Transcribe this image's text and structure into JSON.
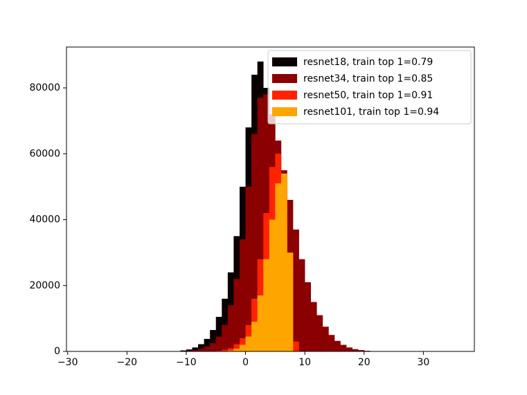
{
  "chart_data": {
    "type": "histogram",
    "bins": [
      -12,
      -11,
      -10,
      -9,
      -8,
      -7,
      -6,
      -5,
      -4,
      -3,
      -2,
      -1,
      0,
      1,
      2,
      3,
      4,
      5,
      6,
      7,
      8,
      9,
      10,
      11,
      12,
      13,
      14,
      15,
      16,
      17,
      18,
      19,
      20,
      21,
      22
    ],
    "series": [
      {
        "name": "resnet18, train top 1=0.79",
        "color": "#0b0000",
        "values": [
          100,
          300,
          600,
          1200,
          2200,
          3800,
          6500,
          10500,
          16000,
          24000,
          35000,
          50000,
          68000,
          84000,
          88000,
          80000,
          62000,
          42000,
          25000,
          13000,
          6000,
          2500,
          1000,
          400,
          100,
          0,
          0,
          0,
          0,
          0,
          0,
          0,
          0,
          0
        ]
      },
      {
        "name": "resnet34, train top 1=0.85",
        "color": "#8b0000",
        "values": [
          50,
          100,
          200,
          400,
          800,
          1500,
          2500,
          4500,
          8000,
          14000,
          22000,
          34000,
          50000,
          66000,
          77000,
          78000,
          72000,
          64000,
          55000,
          46000,
          37000,
          28000,
          21000,
          15000,
          11000,
          7500,
          5000,
          3200,
          2000,
          1200,
          700,
          400,
          200,
          100
        ]
      },
      {
        "name": "resnet50, train top 1=0.91",
        "color": "#ff2200",
        "values": [
          0,
          0,
          0,
          0,
          0,
          0,
          0,
          200,
          500,
          1000,
          2200,
          4000,
          8000,
          16000,
          28000,
          42000,
          56000,
          60000,
          50000,
          28000,
          3000,
          0,
          0,
          0,
          0,
          0,
          0,
          0,
          0,
          0,
          0,
          0,
          0,
          0
        ]
      },
      {
        "name": "resnet101, train top 1=0.94",
        "color": "#ffa500",
        "values": [
          0,
          0,
          0,
          0,
          0,
          0,
          0,
          0,
          100,
          300,
          800,
          2000,
          4500,
          9000,
          17000,
          28000,
          40000,
          51000,
          54000,
          30000,
          0,
          0,
          0,
          0,
          0,
          0,
          0,
          0,
          0,
          0,
          0,
          0,
          0,
          0
        ]
      }
    ],
    "xlim": [
      -30.2,
      38.6
    ],
    "ylim": [
      0,
      92400
    ],
    "xticks": [
      {
        "value": -30,
        "label": "−30"
      },
      {
        "value": -20,
        "label": "−20"
      },
      {
        "value": -10,
        "label": "−10"
      },
      0,
      10,
      20,
      30
    ],
    "yticks": [
      0,
      20000,
      40000,
      60000,
      80000
    ],
    "legend": "upper right"
  }
}
